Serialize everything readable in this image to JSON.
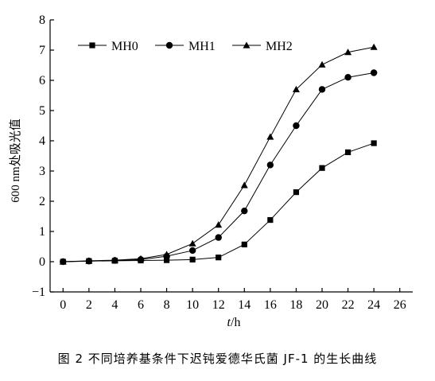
{
  "caption": "图 2   不同培养基条件下迟钝爱德华氏菌 JF-1 的生长曲线",
  "chart_data": {
    "type": "line",
    "title": "",
    "xlabel": "t/h",
    "ylabel": "600 nm处吸光值",
    "xlim": [
      -1,
      27
    ],
    "ylim": [
      -1,
      8
    ],
    "xticks": [
      0,
      2,
      4,
      6,
      8,
      10,
      12,
      14,
      16,
      18,
      20,
      22,
      24,
      26
    ],
    "yticks": [
      -1,
      0,
      1,
      2,
      3,
      4,
      5,
      6,
      7,
      8
    ],
    "grid": false,
    "legend_position": "top-left",
    "x": [
      0,
      2,
      4,
      6,
      8,
      10,
      12,
      14,
      16,
      18,
      20,
      22,
      24
    ],
    "series": [
      {
        "name": "MH0",
        "marker": "square",
        "values": [
          0.0,
          0.02,
          0.03,
          0.04,
          0.05,
          0.07,
          0.14,
          0.57,
          1.38,
          2.3,
          3.1,
          3.62,
          3.92
        ]
      },
      {
        "name": "MH1",
        "marker": "circle",
        "values": [
          0.0,
          0.02,
          0.04,
          0.07,
          0.18,
          0.37,
          0.8,
          1.68,
          3.2,
          4.5,
          5.7,
          6.1,
          6.25
        ]
      },
      {
        "name": "MH2",
        "marker": "triangle",
        "values": [
          0.0,
          0.03,
          0.05,
          0.1,
          0.24,
          0.6,
          1.22,
          2.53,
          4.13,
          5.7,
          6.52,
          6.93,
          7.1
        ]
      }
    ]
  }
}
